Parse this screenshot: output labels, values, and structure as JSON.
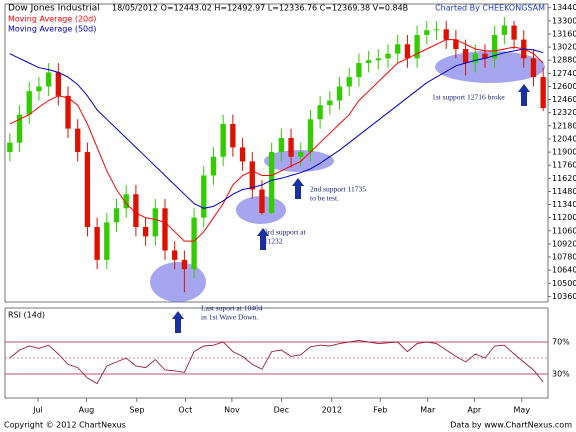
{
  "chart_data": {
    "type": "candlestick",
    "title": "Dow Jones Industrial",
    "subtitle": "18/05/2012   O=12443.02   H=12492.97   L=12336.76   C=12369.38   V=0.84B",
    "credit": "Charted By CHEEKONGSAM",
    "up_color": "#33cc00",
    "down_color": "#dd1100",
    "open": [
      11900,
      12000,
      12300,
      12550,
      12600,
      12750,
      12500,
      12150,
      11900,
      11100,
      10750,
      11150,
      11300,
      11450,
      11100,
      11000,
      11300,
      10850,
      10750,
      10650,
      11200,
      11650,
      11850,
      12200,
      11950,
      11800,
      11500,
      11250,
      11900,
      12050,
      11850,
      11900,
      12250,
      12400,
      12450,
      12600,
      12700,
      12850,
      12880,
      12900,
      12950,
      13050,
      12900,
      13150,
      13200,
      13210,
      13100,
      13000,
      12850,
      12950,
      12900,
      13150,
      13250,
      13100,
      12900,
      12700
    ],
    "high": [
      12100,
      12400,
      12650,
      12700,
      12850,
      12850,
      12600,
      12250,
      12000,
      11200,
      11250,
      11400,
      11550,
      11550,
      11200,
      11400,
      11400,
      10950,
      10850,
      11300,
      11750,
      11950,
      12300,
      12300,
      12050,
      11900,
      11600,
      12000,
      12150,
      12150,
      12000,
      12350,
      12500,
      12550,
      12700,
      12800,
      12950,
      12980,
      13000,
      13050,
      13150,
      13150,
      13250,
      13300,
      13300,
      13300,
      13200,
      13100,
      13050,
      13050,
      13250,
      13340,
      13300,
      13200,
      13000,
      12800
    ],
    "low": [
      11800,
      11900,
      12200,
      12450,
      12500,
      12400,
      12050,
      11800,
      11000,
      10650,
      10650,
      11050,
      11200,
      11000,
      10900,
      10900,
      10750,
      10650,
      10404,
      10550,
      11100,
      11550,
      11750,
      11850,
      11700,
      11400,
      11232,
      11240,
      11800,
      11735,
      11750,
      11800,
      12150,
      12300,
      12350,
      12500,
      12600,
      12750,
      12780,
      12800,
      12850,
      12800,
      12800,
      13050,
      13100,
      13000,
      12900,
      12716,
      12750,
      12800,
      12800,
      13050,
      13000,
      12800,
      12600,
      12336.76
    ],
    "close": [
      12000,
      12300,
      12550,
      12600,
      12750,
      12500,
      12150,
      11900,
      11100,
      10750,
      11150,
      11300,
      11450,
      11100,
      11000,
      11300,
      10850,
      10750,
      10650,
      11200,
      11650,
      11850,
      12200,
      11950,
      11800,
      11500,
      11250,
      11900,
      12050,
      11850,
      11900,
      12250,
      12400,
      12450,
      12600,
      12700,
      12850,
      12880,
      12900,
      12950,
      13050,
      12900,
      13150,
      13200,
      13210,
      13100,
      13000,
      12850,
      12950,
      12900,
      13150,
      13250,
      13100,
      12900,
      12700,
      12369.38
    ],
    "series": [
      {
        "name": "Moving Average (20d)",
        "color": "#ff0000",
        "values": [
          12200,
          12250,
          12300,
          12380,
          12450,
          12500,
          12480,
          12400,
          12200,
          11950,
          11700,
          11500,
          11350,
          11250,
          11200,
          11180,
          11150,
          11050,
          10950,
          10950,
          11050,
          11200,
          11350,
          11550,
          11650,
          11700,
          11650,
          11650,
          11700,
          11750,
          11800,
          11900,
          12000,
          12100,
          12200,
          12300,
          12450,
          12550,
          12650,
          12750,
          12850,
          12900,
          12950,
          13000,
          13050,
          13100,
          13100,
          13050,
          13000,
          12980,
          12980,
          13000,
          13020,
          13000,
          12950,
          12850
        ]
      },
      {
        "name": "Moving Average (50d)",
        "color": "#0000cc",
        "values": [
          12950,
          12900,
          12850,
          12800,
          12780,
          12750,
          12700,
          12620,
          12500,
          12350,
          12250,
          12150,
          12050,
          11950,
          11850,
          11750,
          11650,
          11550,
          11450,
          11350,
          11300,
          11320,
          11380,
          11450,
          11500,
          11520,
          11550,
          11600,
          11620,
          11650,
          11680,
          11720,
          11780,
          11850,
          11920,
          12000,
          12080,
          12160,
          12240,
          12320,
          12400,
          12480,
          12560,
          12640,
          12700,
          12760,
          12820,
          12850,
          12880,
          12900,
          12930,
          12960,
          12980,
          13000,
          12990,
          12960
        ]
      }
    ],
    "xlim": [
      -0.5,
      55.5
    ],
    "xticks": [
      {
        "value": 2.9,
        "label": "Jul"
      },
      {
        "value": 7.9,
        "label": "Aug"
      },
      {
        "value": 13.1,
        "label": "Sep"
      },
      {
        "value": 18.1,
        "label": "Oct"
      },
      {
        "value": 22.9,
        "label": "Nov"
      },
      {
        "value": 28,
        "label": "Dec"
      },
      {
        "value": 33.2,
        "label": "2012"
      },
      {
        "value": 38.2,
        "label": "Feb"
      },
      {
        "value": 43.1,
        "label": "Mar"
      },
      {
        "value": 47.9,
        "label": "Apr"
      },
      {
        "value": 52.8,
        "label": "May"
      }
    ],
    "ylim": [
      10300,
      13480
    ],
    "yticks": [
      13440,
      13300,
      13160,
      13020,
      12880,
      12740,
      12600,
      12460,
      12320,
      12180,
      12040,
      11900,
      11760,
      11620,
      11480,
      11340,
      11200,
      11060,
      10920,
      10780,
      10640,
      10500,
      10360
    ],
    "annotations": [
      {
        "lines": [
          "1st support 12716 broke"
        ]
      },
      {
        "lines": [
          "2nd support 11735",
          "to be test."
        ]
      },
      {
        "lines": [
          "3rd support at",
          "11232"
        ]
      },
      {
        "lines": [
          "Last suport at 10404",
          "in 1st Wave Down."
        ]
      }
    ],
    "rsi": {
      "title": "RSI (14d)",
      "color": "#9c1e3c",
      "values": [
        50,
        60,
        65,
        62,
        66,
        55,
        42,
        38,
        25,
        18,
        40,
        45,
        50,
        40,
        38,
        48,
        35,
        34,
        32,
        58,
        65,
        66,
        70,
        58,
        52,
        42,
        36,
        58,
        60,
        52,
        54,
        64,
        66,
        65,
        68,
        70,
        72,
        70,
        68,
        69,
        70,
        58,
        68,
        70,
        68,
        60,
        52,
        45,
        55,
        50,
        65,
        66,
        55,
        45,
        35,
        20
      ],
      "ylim": [
        0,
        100
      ],
      "yticks": [
        {
          "value": 70,
          "label": "70%"
        },
        {
          "value": 30,
          "label": "30%"
        }
      ],
      "midline": 50
    },
    "footer_left": "Copyright © 2012 ChartNexus",
    "footer_right": "Data by www.ChartNexus.com"
  }
}
